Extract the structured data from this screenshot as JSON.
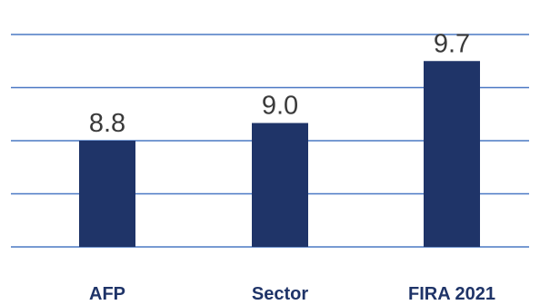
{
  "chart_data": {
    "type": "bar",
    "categories": [
      "AFP",
      "Sector",
      "FIRA 2021"
    ],
    "values": [
      8.8,
      9.0,
      9.7
    ],
    "value_labels": [
      "8.8",
      "9.0",
      "9.7"
    ],
    "title": "",
    "xlabel": "",
    "ylabel": "",
    "ylim": [
      7.6,
      10.0
    ],
    "grid": true,
    "legend": "none",
    "colors": {
      "bar": "#1f3468",
      "grid": "#4a78c4",
      "value_text": "#3a3a3a",
      "category_text": "#1f3468"
    }
  }
}
